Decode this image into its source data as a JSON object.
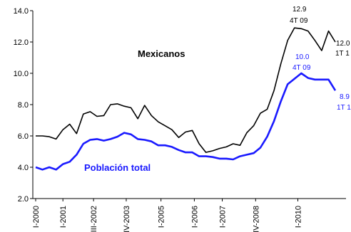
{
  "chart_data": {
    "type": "line",
    "ylim": [
      2.0,
      14.0
    ],
    "yticks": [
      "2.0",
      "4.0",
      "6.0",
      "8.0",
      "10.0",
      "12.0",
      "14.0"
    ],
    "ytick_values": [
      2,
      4,
      6,
      8,
      10,
      12,
      14
    ],
    "n_points": 45,
    "xtick_labels": [
      {
        "index": 0,
        "label": "I-2000"
      },
      {
        "index": 4,
        "label": "I-2001"
      },
      {
        "index": 8.5,
        "label": "III-2002"
      },
      {
        "index": 13.3,
        "label": "IV-2003"
      },
      {
        "index": 18.4,
        "label": "I-2005"
      },
      {
        "index": 23.3,
        "label": "I-2006"
      },
      {
        "index": 27.4,
        "label": "I-2007"
      },
      {
        "index": 32.3,
        "label": "IV-2008"
      },
      {
        "index": 38.5,
        "label": "I-2010"
      }
    ],
    "series": [
      {
        "name": "Mexicanos",
        "color": "#000000",
        "values": [
          6.0,
          6.0,
          5.95,
          5.8,
          6.4,
          6.75,
          6.15,
          7.4,
          7.55,
          7.25,
          7.3,
          8.0,
          8.05,
          7.9,
          7.8,
          7.1,
          7.95,
          7.3,
          6.9,
          6.65,
          6.4,
          5.9,
          6.25,
          6.35,
          5.5,
          4.95,
          5.05,
          5.2,
          5.3,
          5.5,
          5.4,
          6.2,
          6.65,
          7.45,
          7.7,
          8.9,
          10.6,
          12.1,
          12.9,
          12.85,
          12.7,
          12.1,
          11.45,
          12.7,
          12.0
        ]
      },
      {
        "name": "Población total",
        "color": "#1a1aff",
        "values": [
          4.0,
          3.85,
          4.0,
          3.85,
          4.2,
          4.35,
          4.8,
          5.5,
          5.75,
          5.8,
          5.7,
          5.8,
          5.95,
          6.2,
          6.1,
          5.8,
          5.75,
          5.65,
          5.4,
          5.4,
          5.3,
          5.1,
          4.95,
          4.95,
          4.7,
          4.7,
          4.65,
          4.55,
          4.55,
          4.5,
          4.7,
          4.8,
          4.9,
          5.25,
          5.95,
          6.95,
          8.2,
          9.3,
          9.65,
          10.0,
          9.7,
          9.6,
          9.6,
          9.6,
          8.9
        ]
      }
    ],
    "labels": {
      "mexicanos": "Mexicanos",
      "poblacion": "Población total"
    },
    "annotations": {
      "mex_peak_value": "12.9",
      "mex_peak_period": "4T 09",
      "mex_last_value": "12.0",
      "mex_last_period": "1T 1",
      "pob_peak_value": "10.0",
      "pob_peak_period": "4T 09",
      "pob_last_value": "8.9",
      "pob_last_period": "1T 1"
    },
    "grid": false,
    "legend": "none"
  }
}
